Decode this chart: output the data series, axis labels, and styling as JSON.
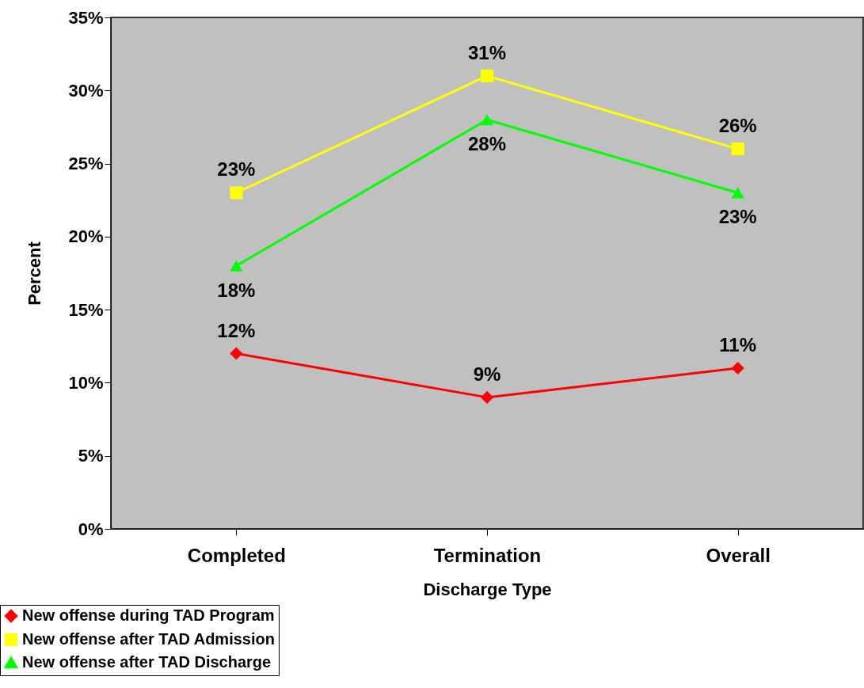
{
  "chart_data": {
    "type": "line",
    "xlabel": "Discharge Type",
    "ylabel": "Percent",
    "categories": [
      "Completed",
      "Termination",
      "Overall"
    ],
    "series": [
      {
        "name": "New offense during TAD Program",
        "color": "#ff0000",
        "marker": "diamond",
        "values": [
          12,
          9,
          11
        ],
        "value_labels": [
          "12%",
          "9%",
          "11%"
        ]
      },
      {
        "name": "New offense after TAD Admission",
        "color": "#ffff00",
        "marker": "square",
        "values": [
          23,
          31,
          26
        ],
        "value_labels": [
          "23%",
          "31%",
          "26%"
        ]
      },
      {
        "name": "New offense after TAD Discharge",
        "color": "#00ff00",
        "marker": "triangle",
        "values": [
          18,
          28,
          23
        ],
        "value_labels": [
          "18%",
          "28%",
          "23%"
        ]
      }
    ],
    "ylim": [
      0,
      35
    ],
    "yticks": [
      {
        "value": 0,
        "label": "0%"
      },
      {
        "value": 5,
        "label": "5%"
      },
      {
        "value": 10,
        "label": "10%"
      },
      {
        "value": 15,
        "label": "15%"
      },
      {
        "value": 20,
        "label": "20%"
      },
      {
        "value": 25,
        "label": "25%"
      },
      {
        "value": 30,
        "label": "30%"
      },
      {
        "value": 35,
        "label": "35%"
      }
    ],
    "grid": false,
    "legend": "bottom left"
  }
}
